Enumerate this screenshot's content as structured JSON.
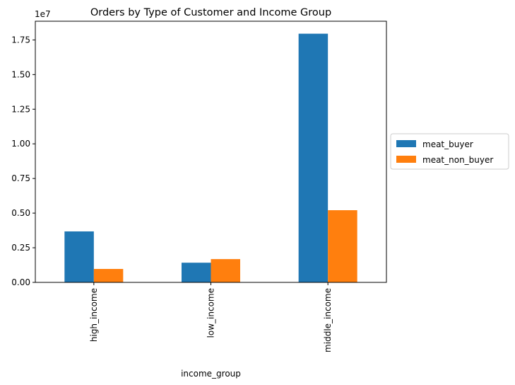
{
  "chart_data": {
    "type": "bar",
    "title": "Orders by Type of Customer and Income Group",
    "xlabel": "income_group",
    "ylabel": "",
    "offset_label": "1e7",
    "categories": [
      "high_income",
      "low_income",
      "middle_income"
    ],
    "series": [
      {
        "name": "meat_buyer",
        "color": "#1f77b4",
        "values": [
          3.68,
          1.42,
          17.95
        ]
      },
      {
        "name": "meat_non_buyer",
        "color": "#ff7f0e",
        "values": [
          0.97,
          1.68,
          5.21
        ]
      }
    ],
    "value_scale": 10000000,
    "ylim": [
      0,
      18.85
    ],
    "yticks": [
      "0.00",
      "0.25",
      "0.50",
      "0.75",
      "1.00",
      "1.25",
      "1.50",
      "1.75"
    ],
    "grid": false,
    "legend_position": "outside-right"
  }
}
